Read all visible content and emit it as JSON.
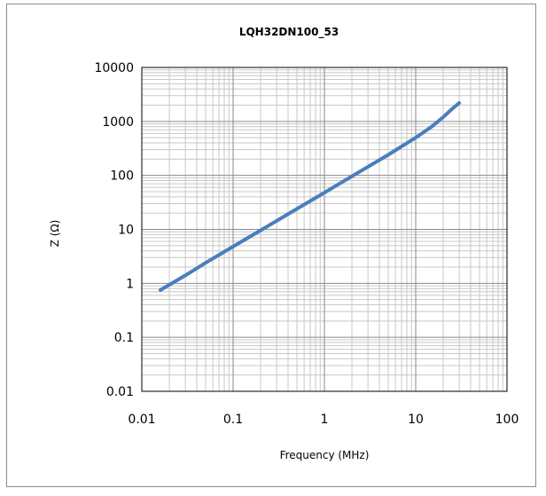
{
  "chart_data": {
    "type": "line",
    "title": "LQH32DN100_53",
    "xlabel": "Frequency (MHz)",
    "ylabel": "Z (Ω)",
    "x_scale": "log",
    "y_scale": "log",
    "xlim": [
      0.01,
      100
    ],
    "ylim": [
      0.01,
      10000
    ],
    "x_ticks": [
      "0.01",
      "0.1",
      "1",
      "10",
      "100"
    ],
    "y_ticks": [
      "0.01",
      "0.1",
      "1",
      "10",
      "100",
      "1000",
      "10000"
    ],
    "grid": true,
    "legend": "none",
    "series": [
      {
        "color": "#4a7ebb",
        "x": [
          0.016,
          0.03,
          0.05,
          0.1,
          0.2,
          0.5,
          1,
          2,
          5,
          10,
          15,
          20,
          25,
          30
        ],
        "y": [
          0.75,
          1.4,
          2.4,
          4.8,
          9.6,
          24,
          48,
          96,
          240,
          500,
          800,
          1200,
          1700,
          2200
        ]
      }
    ]
  }
}
